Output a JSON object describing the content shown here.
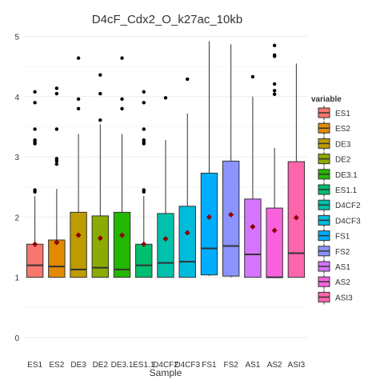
{
  "chart_data": {
    "type": "box",
    "title": "D4cF_Cdx2_O_k27ac_10kb",
    "xlabel": "Sample",
    "ylabel": "",
    "ylim": [
      -0.2,
      5.1
    ],
    "yticks": [
      0,
      1,
      2,
      3,
      4,
      5
    ],
    "grid": true,
    "legend": {
      "title": "variable",
      "position": "right"
    },
    "categories": [
      "ES1",
      "ES2",
      "DE3",
      "DE2",
      "DE3.1",
      "ES1.1",
      "D4CF2",
      "D4CF3",
      "FS1",
      "FS2",
      "AS1",
      "AS2",
      "ASI3"
    ],
    "series": [
      {
        "name": "ES1",
        "color": "#F8766D",
        "min": 1.0,
        "q1": 1.0,
        "median": 1.2,
        "q3": 1.55,
        "max": 2.35,
        "mean": 1.55,
        "outliers": [
          2.42,
          2.45,
          3.22,
          3.25,
          3.28,
          3.46,
          3.9,
          4.08
        ]
      },
      {
        "name": "ES2",
        "color": "#E18A00",
        "min": 1.0,
        "q1": 1.0,
        "median": 1.18,
        "q3": 1.62,
        "max": 2.47,
        "mean": 1.58,
        "outliers": [
          2.88,
          2.93,
          2.97,
          3.46,
          4.05,
          4.14
        ]
      },
      {
        "name": "DE3",
        "color": "#BE9C00",
        "min": 1.0,
        "q1": 1.0,
        "median": 1.13,
        "q3": 2.08,
        "max": 3.38,
        "mean": 1.7,
        "outliers": [
          3.8,
          3.96,
          4.64
        ]
      },
      {
        "name": "DE2",
        "color": "#8CAB00",
        "min": 1.0,
        "q1": 1.0,
        "median": 1.16,
        "q3": 2.02,
        "max": 3.54,
        "mean": 1.65,
        "outliers": [
          3.61,
          4.05,
          4.36
        ]
      },
      {
        "name": "DE3.1",
        "color": "#24B700",
        "min": 1.0,
        "q1": 1.0,
        "median": 1.13,
        "q3": 2.08,
        "max": 3.38,
        "mean": 1.7,
        "outliers": [
          3.8,
          3.96,
          4.64
        ]
      },
      {
        "name": "ES1.1",
        "color": "#00BE70",
        "min": 1.0,
        "q1": 1.0,
        "median": 1.2,
        "q3": 1.55,
        "max": 2.35,
        "mean": 1.55,
        "outliers": [
          2.42,
          2.45,
          3.22,
          3.25,
          3.28,
          3.46,
          3.9,
          4.08
        ]
      },
      {
        "name": "D4CF2",
        "color": "#00C1AB",
        "min": 1.0,
        "q1": 1.0,
        "median": 1.24,
        "q3": 2.06,
        "max": 3.28,
        "mean": 1.64,
        "outliers": [
          3.98
        ]
      },
      {
        "name": "D4CF3",
        "color": "#00BBDA",
        "min": 1.0,
        "q1": 1.0,
        "median": 1.26,
        "q3": 2.18,
        "max": 3.72,
        "mean": 1.74,
        "outliers": [
          4.29
        ]
      },
      {
        "name": "FS1",
        "color": "#00ACFC",
        "min": 1.02,
        "q1": 1.04,
        "median": 1.48,
        "q3": 2.73,
        "max": 4.92,
        "mean": 2.0,
        "outliers": []
      },
      {
        "name": "FS2",
        "color": "#8B93FF",
        "min": 1.0,
        "q1": 1.02,
        "median": 1.52,
        "q3": 2.93,
        "max": 4.87,
        "mean": 2.04,
        "outliers": []
      },
      {
        "name": "AS1",
        "color": "#D575FE",
        "min": 1.0,
        "q1": 1.0,
        "median": 1.38,
        "q3": 2.3,
        "max": 4.0,
        "mean": 1.84,
        "outliers": [
          4.33
        ]
      },
      {
        "name": "AS2",
        "color": "#F962DD",
        "min": 1.0,
        "q1": 1.0,
        "median": 1.0,
        "q3": 2.15,
        "max": 3.15,
        "mean": 1.78,
        "outliers": [
          4.04,
          4.1,
          4.21,
          4.67,
          4.69,
          4.85
        ]
      },
      {
        "name": "ASI3",
        "color": "#FF65AC",
        "min": 1.0,
        "q1": 1.0,
        "median": 1.4,
        "q3": 2.92,
        "max": 4.55,
        "mean": 1.99,
        "outliers": []
      }
    ]
  }
}
